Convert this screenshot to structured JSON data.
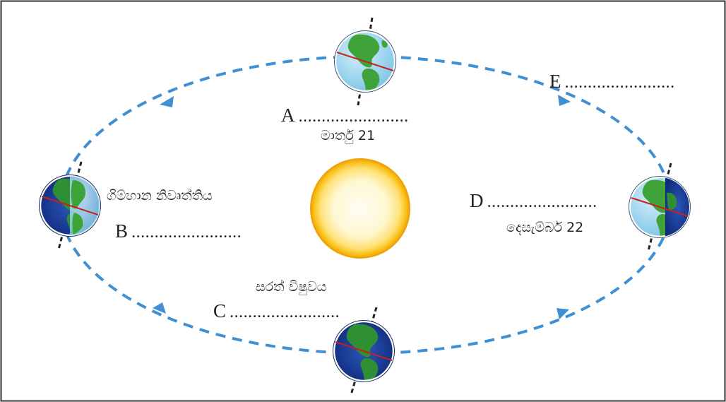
{
  "labels": {
    "a": {
      "letter": "A",
      "dots": "........................"
    },
    "b": {
      "letter": "B",
      "dots": "........................"
    },
    "c": {
      "letter": "C",
      "dots": "........................"
    },
    "d": {
      "letter": "D",
      "dots": "........................"
    },
    "e": {
      "letter": "E",
      "dots": "........................"
    }
  },
  "captions": {
    "march": "මාර්තු 21",
    "summer_solstice": "ගිම්හාන නිවෘත්තිය",
    "december": "දෙසැම්බර් 22",
    "autumn_equinox": "සරත් විෂුවය"
  },
  "colors": {
    "orbit": "#3f8fd2",
    "ocean_day": "#9fd6ee",
    "ocean_night": "#1c3f9a",
    "land": "#3fa33a",
    "equator": "#c8201d",
    "sun_core": "#fffbe8",
    "sun_rim": "#f4b30f"
  },
  "icons": [
    "sun-icon",
    "earth-icon",
    "arrow-icon"
  ]
}
